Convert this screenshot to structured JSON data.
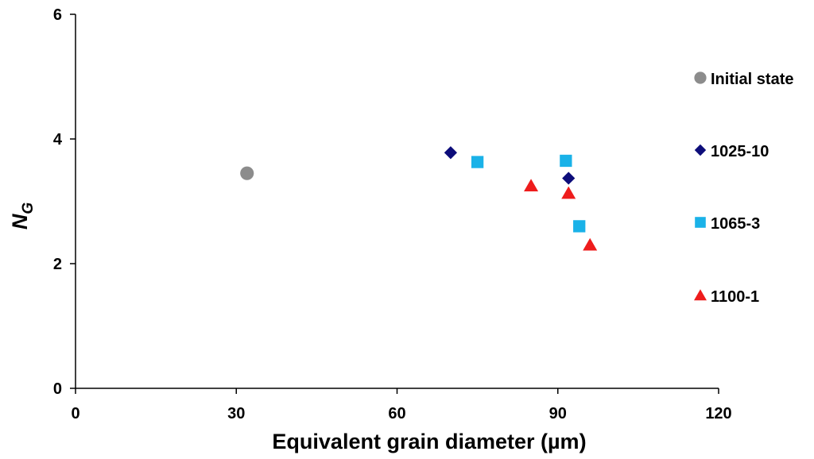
{
  "chart_data": {
    "type": "scatter",
    "title": "",
    "xlabel": "Equivalent grain diameter (µm)",
    "ylabel": {
      "main": "N",
      "sub": "G"
    },
    "xlim": [
      0,
      120
    ],
    "ylim": [
      0,
      6
    ],
    "x_ticks": [
      0,
      30,
      60,
      90,
      120
    ],
    "y_ticks": [
      0,
      2,
      4,
      6
    ],
    "grid": false,
    "legend_position": "right",
    "series": [
      {
        "name": "Initial state",
        "marker": "circle",
        "color": "#8c8c8c",
        "points": [
          {
            "x": 32,
            "y": 3.45
          }
        ]
      },
      {
        "name": "1025-10",
        "marker": "diamond",
        "color": "#0d0d7a",
        "points": [
          {
            "x": 70,
            "y": 3.78
          },
          {
            "x": 92,
            "y": 3.37
          }
        ]
      },
      {
        "name": "1065-3",
        "marker": "square",
        "color": "#1ab2e8",
        "points": [
          {
            "x": 75,
            "y": 3.63
          },
          {
            "x": 91.5,
            "y": 3.65
          },
          {
            "x": 94,
            "y": 2.6
          }
        ]
      },
      {
        "name": "1100-1",
        "marker": "triangle",
        "color": "#ee1c1c",
        "points": [
          {
            "x": 85,
            "y": 3.25
          },
          {
            "x": 92,
            "y": 3.13
          },
          {
            "x": 96,
            "y": 2.3
          }
        ]
      }
    ]
  }
}
